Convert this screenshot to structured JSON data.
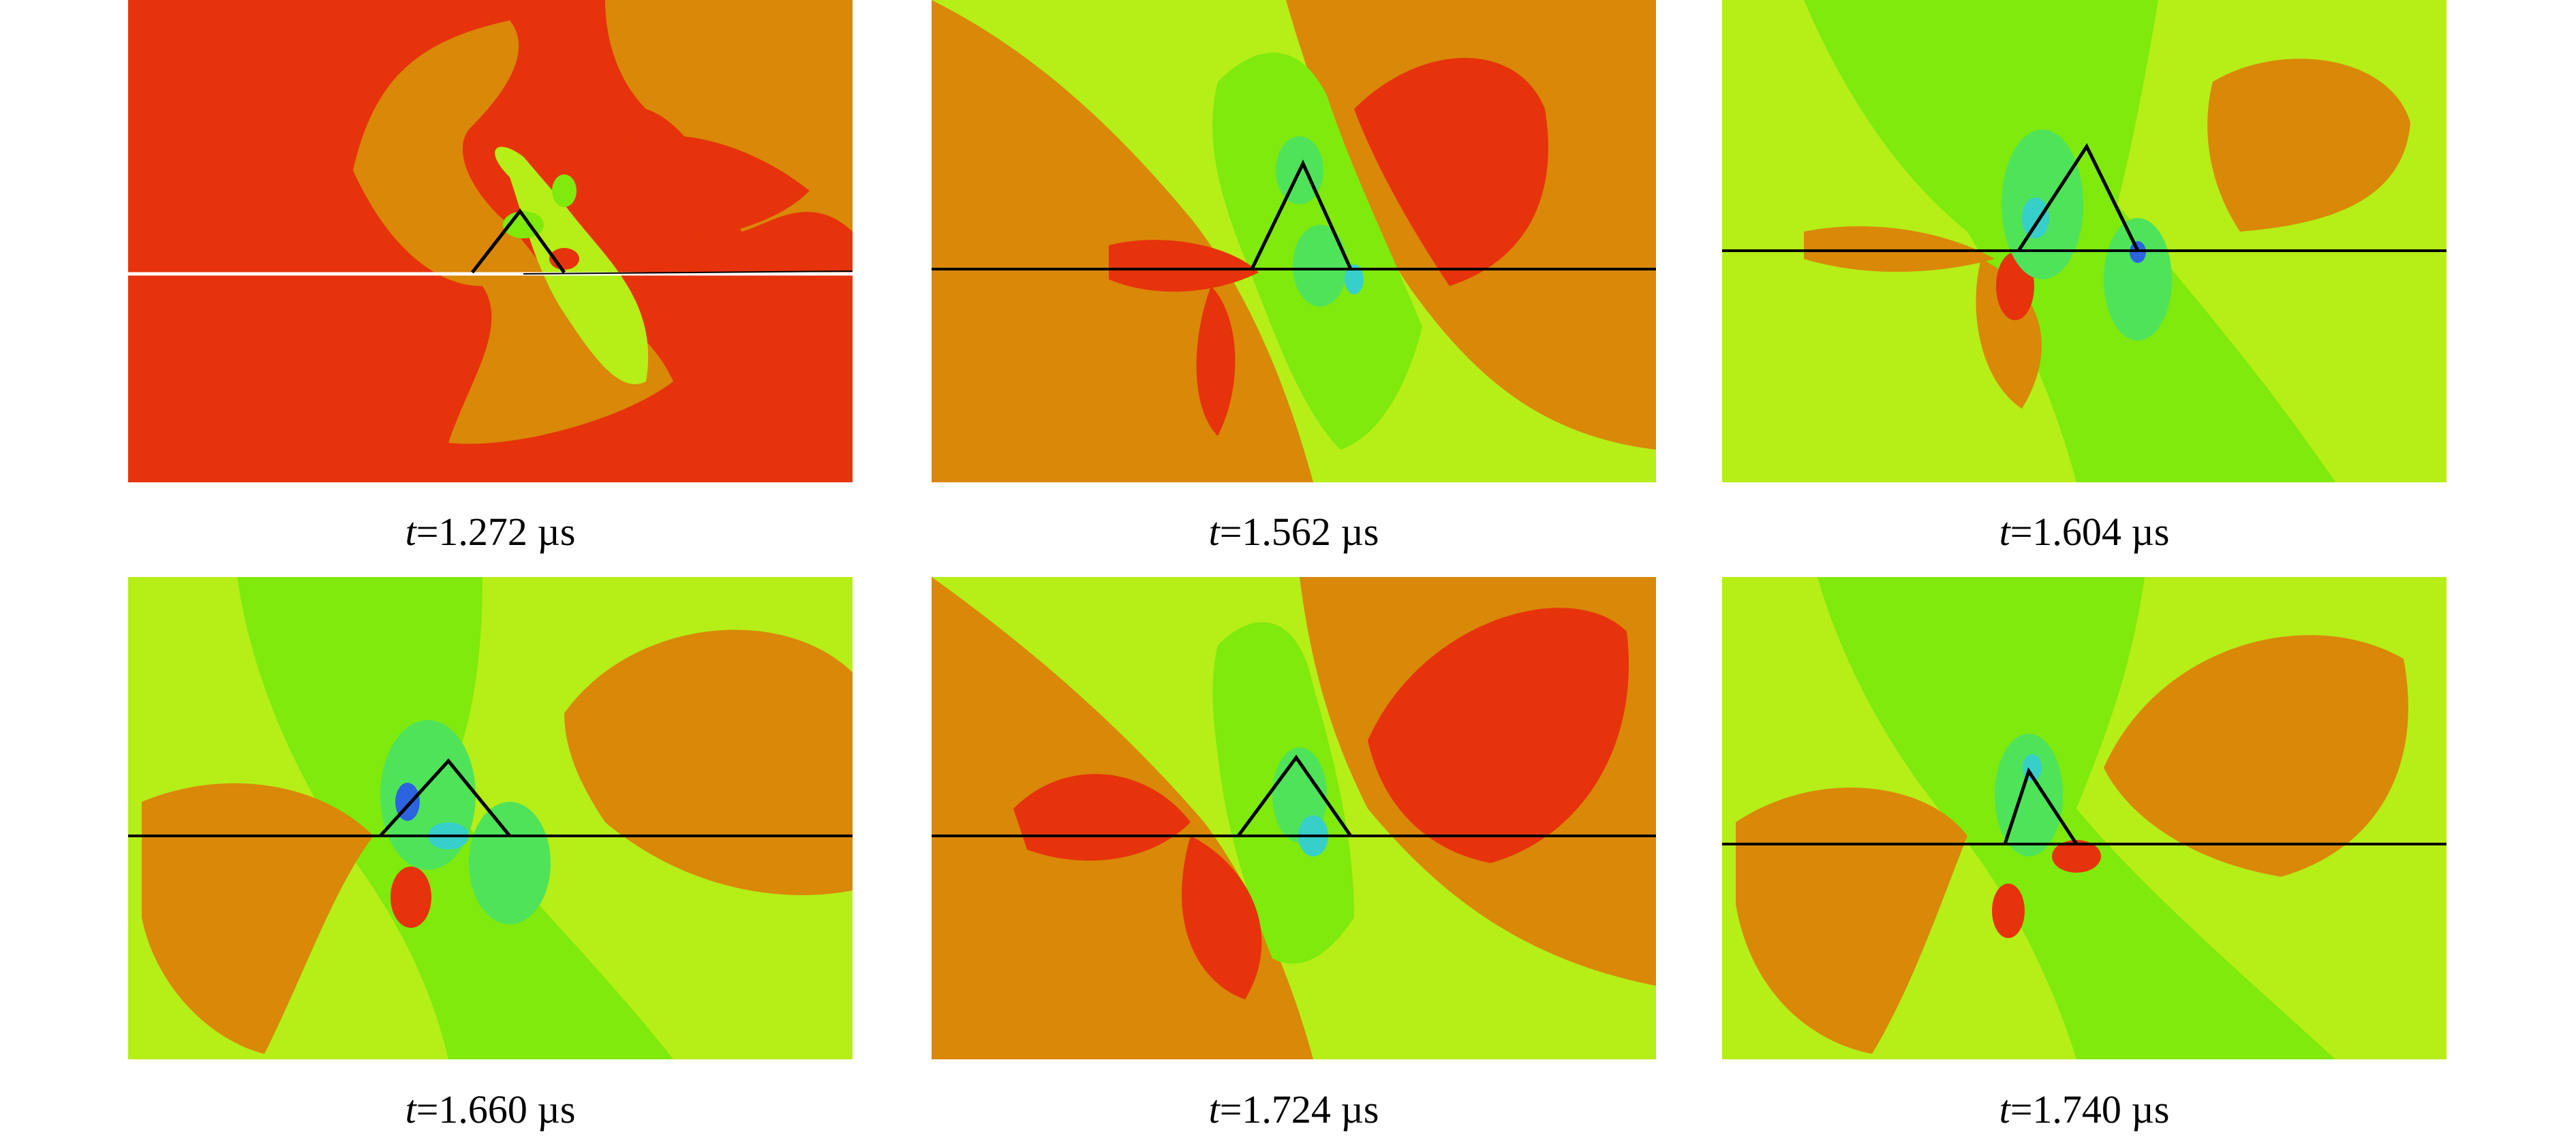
{
  "colors": {
    "red": "#e6330b",
    "orange": "#d98808",
    "yellow_green": "#b6ee18",
    "green": "#7fea0c",
    "mid_green": "#4fe35a",
    "cyan": "#36cfc9",
    "blue": "#2c64e0",
    "crack_line": "#000000"
  },
  "panels": [
    {
      "t_var": "t",
      "value": "=1.272 µs"
    },
    {
      "t_var": "t",
      "value": "=1.562 µs"
    },
    {
      "t_var": "t",
      "value": "=1.604 µs"
    },
    {
      "t_var": "t",
      "value": "=1.660 µs"
    },
    {
      "t_var": "t",
      "value": "=1.724 µs"
    },
    {
      "t_var": "t",
      "value": "=1.740 µs"
    }
  ]
}
